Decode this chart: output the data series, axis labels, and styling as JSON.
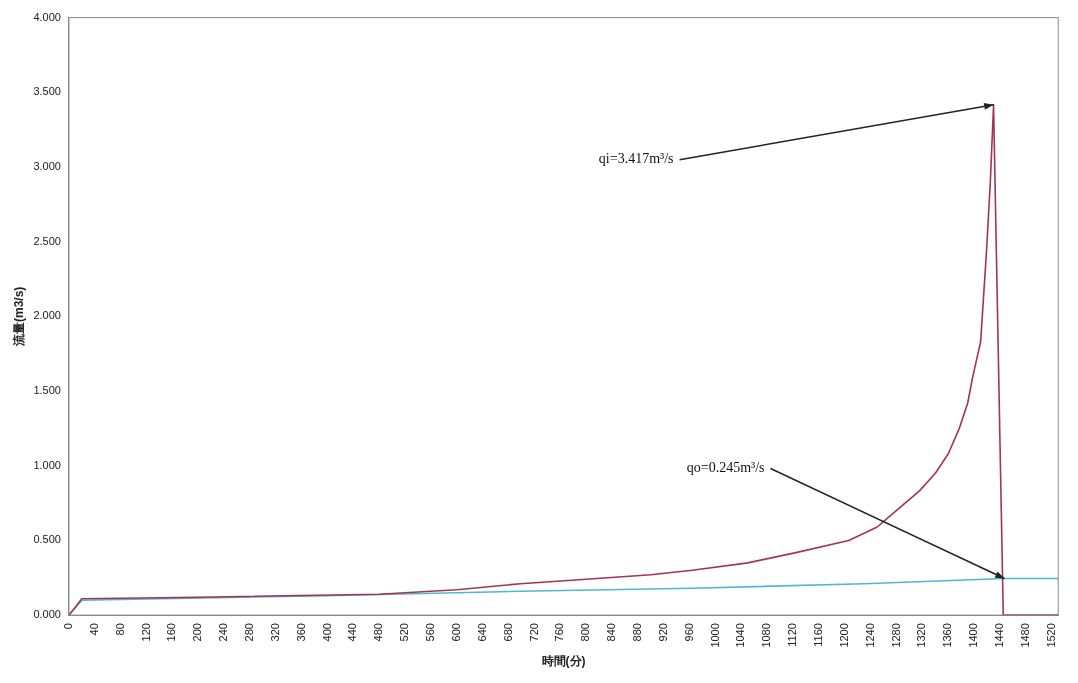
{
  "chart_data": {
    "type": "line",
    "xlabel": "時間(分)",
    "ylabel": "流量(m3/s)",
    "xlim": [
      0,
      1530
    ],
    "xticks": [
      0,
      40,
      80,
      120,
      160,
      200,
      240,
      280,
      320,
      360,
      400,
      440,
      480,
      520,
      560,
      600,
      640,
      680,
      720,
      760,
      800,
      840,
      880,
      920,
      960,
      1000,
      1040,
      1080,
      1120,
      1160,
      1200,
      1240,
      1280,
      1320,
      1360,
      1400,
      1440,
      1480,
      1520
    ],
    "ylim": [
      0,
      4
    ],
    "yticks": [
      {
        "value": 0,
        "label": "0.000"
      },
      {
        "value": 0.5,
        "label": "0.500"
      },
      {
        "value": 1,
        "label": "1.000"
      },
      {
        "value": 1.5,
        "label": "1.500"
      },
      {
        "value": 2,
        "label": "2.000"
      },
      {
        "value": 2.5,
        "label": "2.500"
      },
      {
        "value": 3,
        "label": "3.000"
      },
      {
        "value": 3.5,
        "label": "3.500"
      },
      {
        "value": 4,
        "label": "4.000"
      }
    ],
    "grid": false,
    "legend": false,
    "marker": "none",
    "line_style": "solid",
    "series": [
      {
        "color": "#a3354f",
        "x": [
          0,
          20,
          200,
          480,
          600,
          698,
          800,
          900,
          964,
          1050,
          1126,
          1206,
          1250,
          1285,
          1315,
          1340,
          1360,
          1377,
          1390,
          1398,
          1410,
          1419,
          1425,
          1430,
          1445,
          1530
        ],
        "values": [
          0,
          0.11,
          0.12,
          0.14,
          0.17,
          0.21,
          0.24,
          0.27,
          0.3,
          0.35,
          0.42,
          0.5,
          0.59,
          0.72,
          0.83,
          0.95,
          1.08,
          1.25,
          1.42,
          1.6,
          1.83,
          2.43,
          2.9,
          3.417,
          0,
          0
        ]
      },
      {
        "color": "#4fb8d0",
        "x": [
          0,
          20,
          400,
          698,
          964,
          1230,
          1447,
          1530
        ],
        "values": [
          0,
          0.1,
          0.13,
          0.16,
          0.18,
          0.21,
          0.245,
          0.245
        ]
      }
    ],
    "annotations": [
      {
        "text": "qi=3.417m³/s",
        "x": 1430,
        "y": 3.417
      },
      {
        "text": "qo=0.245m³/s",
        "x": 1447,
        "y": 0.245
      }
    ]
  }
}
